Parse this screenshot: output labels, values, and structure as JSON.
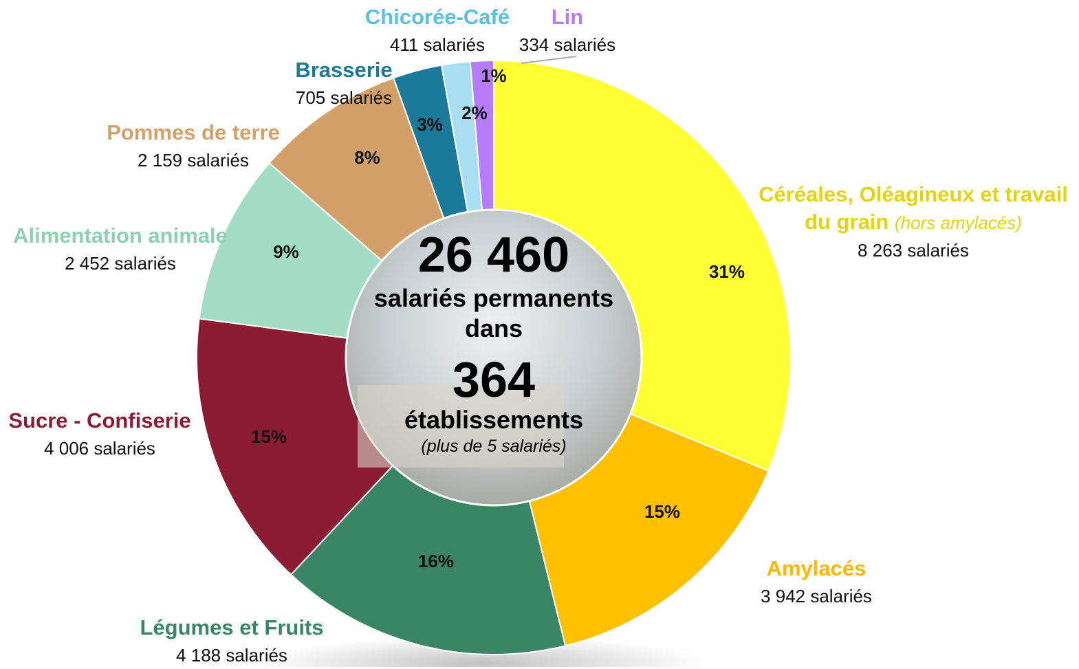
{
  "chart_data": {
    "type": "donut",
    "categories": [
      "Céréales, Oléagineux et travail du grain",
      "Amylacés",
      "Légumes et Fruits",
      "Sucre - Confiserie",
      "Alimentation animale",
      "Pommes de terre",
      "Brasserie",
      "Chicorée-Café",
      "Lin"
    ],
    "annotations": [
      "(hors amylacés)"
    ],
    "values": [
      31,
      15,
      16,
      15,
      9,
      8,
      3,
      2,
      1
    ],
    "value_labels": [
      "31%",
      "15%",
      "16%",
      "15%",
      "9%",
      "8%",
      "3%",
      "2%",
      "1%"
    ],
    "employees": [
      8263,
      3942,
      4188,
      4006,
      2452,
      2159,
      705,
      411,
      334
    ],
    "employee_labels": [
      "8 263 salariés",
      "3 942 salariés",
      "4 188 salariés",
      "4 006 salariés",
      "2 452 salariés",
      "2 159 salariés",
      "705 salariés",
      "411 salariés",
      "334 salariés"
    ],
    "colors": [
      "#ffff33",
      "#ffc000",
      "#3a8565",
      "#8b1c33",
      "#a3dcc6",
      "#d4a06a",
      "#1b7a99",
      "#a9def2",
      "#b57cff"
    ],
    "label_colors": [
      "#e3d40c",
      "#ffb800",
      "#3a8565",
      "#8b1c33",
      "#8fcfb3",
      "#d4a06a",
      "#1b7a99",
      "#5bc0e0",
      "#b57cff"
    ],
    "center": {
      "total": "26 460",
      "total_text": "salariés permanents dans",
      "sites": "364",
      "sites_text": "établissements",
      "sites_note": "(plus de 5 salariés)"
    }
  }
}
